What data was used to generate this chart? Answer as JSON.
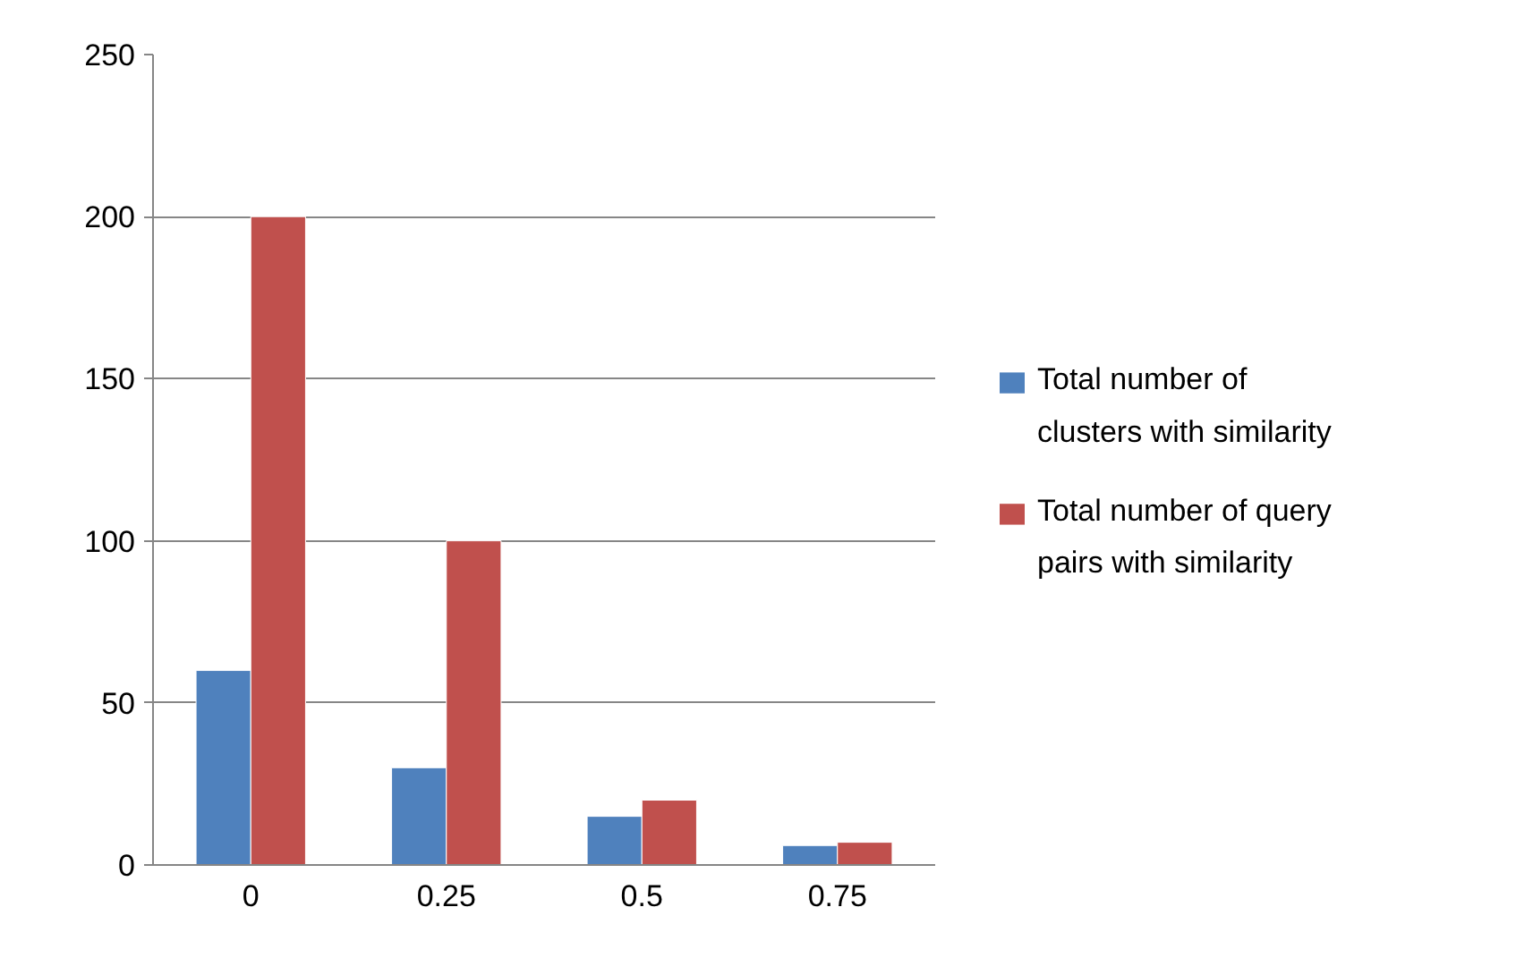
{
  "chart_data": {
    "type": "bar",
    "categories": [
      "0",
      "0.25",
      "0.5",
      "0.75"
    ],
    "series": [
      {
        "name": "Total number of clusters with similarity",
        "color": "#4f81bd",
        "values": [
          60,
          30,
          15,
          6
        ]
      },
      {
        "name": "Total number of query pairs with similarity",
        "color": "#c0504d",
        "values": [
          200,
          100,
          20,
          7
        ]
      }
    ],
    "ylim": [
      0,
      250
    ],
    "yticks": [
      0,
      50,
      100,
      150,
      200,
      250
    ],
    "grid": "y",
    "legend": "right"
  }
}
